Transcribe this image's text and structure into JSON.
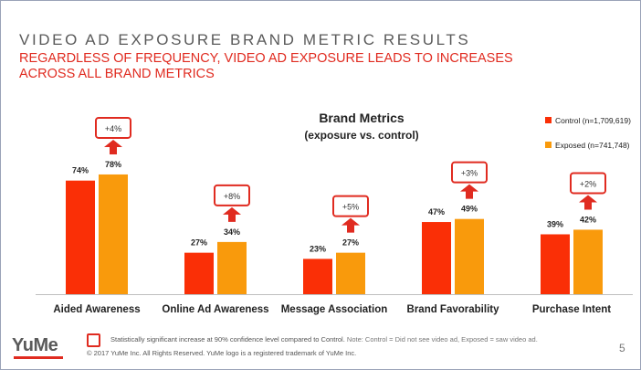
{
  "slide": {
    "title": "VIDEO AD EXPOSURE BRAND METRIC RESULTS",
    "subtitle": "REGARDLESS OF FREQUENCY, VIDEO AD EXPOSURE LEADS TO INCREASES ACROSS ALL BRAND METRICS",
    "page_number": "5",
    "logo_text": "YuMe"
  },
  "footer": {
    "significance_note": "Statistically significant increase at 90% confidence level compared to Control.",
    "definition_note": "Note: Control = Did not see video ad, Exposed = saw video ad.",
    "copyright": "© 2017 YuMe Inc. All Rights Reserved. YuMe logo is a registered trademark of YuMe Inc."
  },
  "colors": {
    "control": "#fa2f06",
    "exposed": "#f99a0c",
    "accent": "#e02b20"
  },
  "chart_data": {
    "type": "bar",
    "title": "Brand Metrics",
    "subtitle": "(exposure vs. control)",
    "categories": [
      "Aided Awareness",
      "Online Ad Awareness",
      "Message Association",
      "Brand Favorability",
      "Purchase Intent"
    ],
    "series": [
      {
        "name": "Control (n=1,709,619)",
        "values": [
          74,
          27,
          23,
          47,
          39
        ],
        "labels": [
          "74%",
          "27%",
          "23%",
          "47%",
          "39%"
        ]
      },
      {
        "name": "Exposed (n=741,748)",
        "values": [
          78,
          34,
          27,
          49,
          42
        ],
        "labels": [
          "78%",
          "34%",
          "27%",
          "49%",
          "42%"
        ]
      }
    ],
    "lifts": [
      "+4%",
      "+8%",
      "+5%",
      "+3%",
      "+2%"
    ],
    "ylim": [
      0,
      100
    ],
    "legend": "top-right",
    "grid": false
  }
}
